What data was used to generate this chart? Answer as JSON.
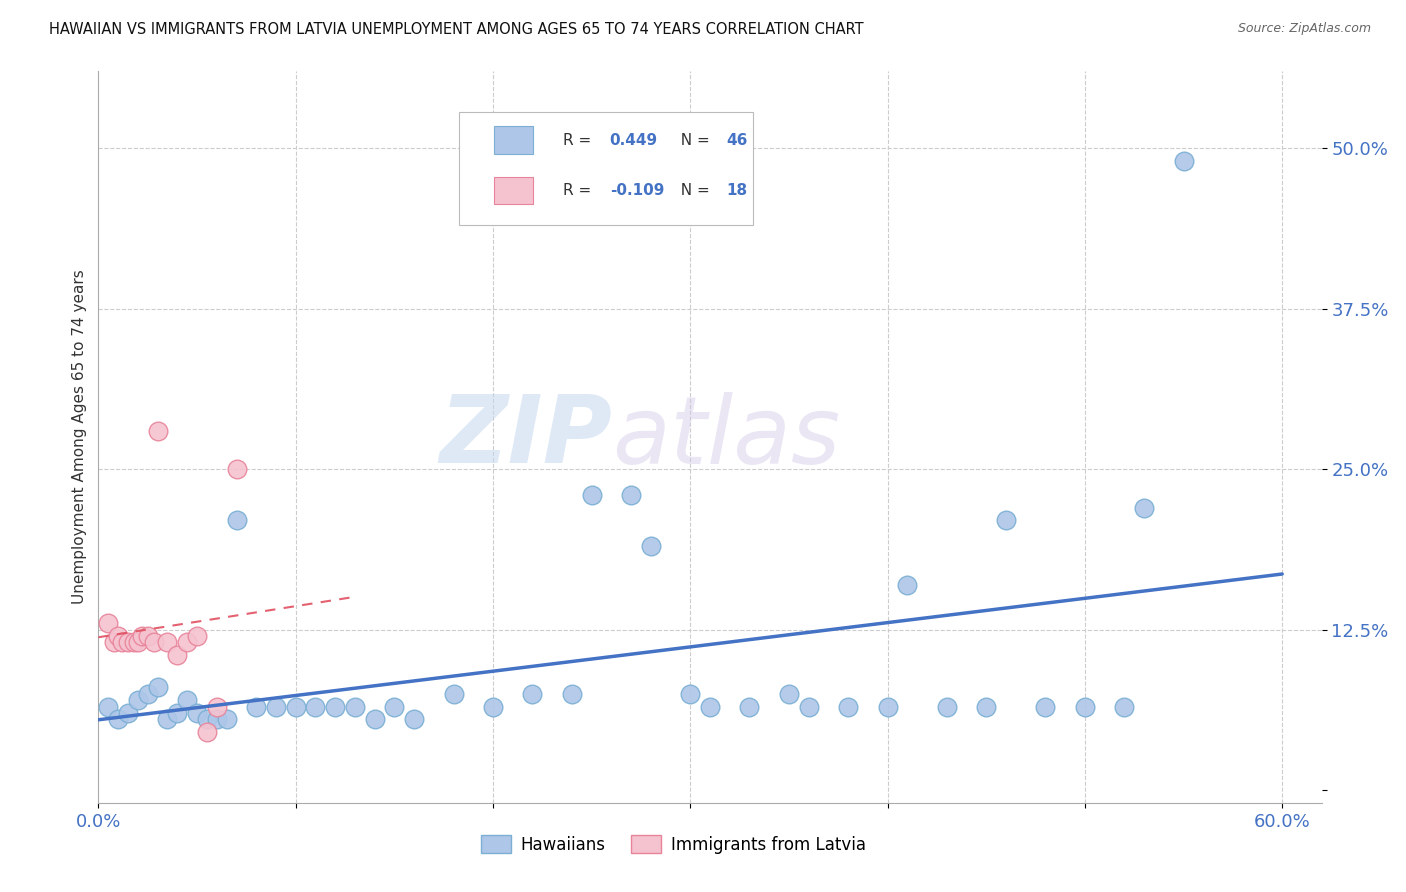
{
  "title": "HAWAIIAN VS IMMIGRANTS FROM LATVIA UNEMPLOYMENT AMONG AGES 65 TO 74 YEARS CORRELATION CHART",
  "source": "Source: ZipAtlas.com",
  "ylabel": "Unemployment Among Ages 65 to 74 years",
  "xlim": [
    0.0,
    0.62
  ],
  "ylim": [
    -0.01,
    0.56
  ],
  "yticks": [
    0.0,
    0.125,
    0.25,
    0.375,
    0.5
  ],
  "ytick_labels": [
    "",
    "12.5%",
    "25.0%",
    "37.5%",
    "50.0%"
  ],
  "hawaiians_x": [
    0.005,
    0.01,
    0.015,
    0.02,
    0.025,
    0.03,
    0.035,
    0.04,
    0.045,
    0.05,
    0.055,
    0.06,
    0.065,
    0.07,
    0.08,
    0.09,
    0.1,
    0.11,
    0.12,
    0.13,
    0.14,
    0.15,
    0.16,
    0.18,
    0.2,
    0.22,
    0.24,
    0.25,
    0.27,
    0.28,
    0.3,
    0.31,
    0.33,
    0.35,
    0.36,
    0.38,
    0.4,
    0.41,
    0.43,
    0.45,
    0.46,
    0.48,
    0.5,
    0.52,
    0.53,
    0.55
  ],
  "hawaiians_y": [
    0.065,
    0.055,
    0.06,
    0.07,
    0.075,
    0.08,
    0.055,
    0.06,
    0.07,
    0.06,
    0.055,
    0.055,
    0.055,
    0.21,
    0.065,
    0.065,
    0.065,
    0.065,
    0.065,
    0.065,
    0.055,
    0.065,
    0.055,
    0.075,
    0.065,
    0.075,
    0.075,
    0.23,
    0.23,
    0.19,
    0.075,
    0.065,
    0.065,
    0.075,
    0.065,
    0.065,
    0.065,
    0.16,
    0.065,
    0.065,
    0.21,
    0.065,
    0.065,
    0.065,
    0.22,
    0.49
  ],
  "latvia_x": [
    0.005,
    0.008,
    0.01,
    0.012,
    0.015,
    0.018,
    0.02,
    0.022,
    0.025,
    0.028,
    0.03,
    0.035,
    0.04,
    0.045,
    0.05,
    0.055,
    0.06,
    0.07
  ],
  "latvia_y": [
    0.13,
    0.115,
    0.12,
    0.115,
    0.115,
    0.115,
    0.115,
    0.12,
    0.12,
    0.115,
    0.28,
    0.115,
    0.105,
    0.115,
    0.12,
    0.045,
    0.065,
    0.25
  ],
  "hawaiians_color": "#aec6e8",
  "hawaiians_edge_color": "#7bafd4",
  "latvia_color": "#f5c2cf",
  "latvia_edge_color": "#e8849a",
  "blue_line_color": "#4472c4",
  "red_line_color": "#e05060",
  "R_hawaiians": "0.449",
  "N_hawaiians": "46",
  "R_latvia": "-0.109",
  "N_latvia": "18",
  "watermark_zip": "ZIP",
  "watermark_atlas": "atlas",
  "legend_hawaiians": "Hawaiians",
  "legend_latvia": "Immigrants from Latvia"
}
